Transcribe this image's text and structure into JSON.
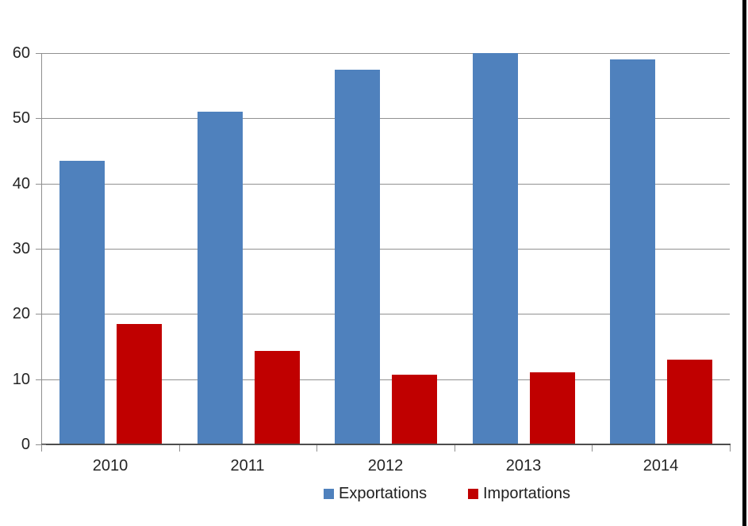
{
  "chart_data": {
    "type": "bar",
    "title": "",
    "xlabel": "",
    "ylabel": "",
    "categories": [
      "2010",
      "2011",
      "2012",
      "2013",
      "2014"
    ],
    "series": [
      {
        "name": "Exportations",
        "color": "#4F81BD",
        "values": [
          43.5,
          51,
          57.5,
          60,
          59
        ]
      },
      {
        "name": "Importations",
        "color": "#C00000",
        "values": [
          18.5,
          14.3,
          10.7,
          11,
          13
        ]
      }
    ],
    "ylim": [
      0,
      60
    ],
    "yticks": [
      0,
      10,
      20,
      30,
      40,
      50,
      60
    ],
    "ytick_labels": [
      "0",
      "10",
      "20",
      "30",
      "40",
      "50",
      "60"
    ],
    "grid": true,
    "gridline_color": "#919191",
    "axis_line_color": "#4d4d4d",
    "text_color": "#252525",
    "background_color": "#ffffff",
    "legend_position": "bottom"
  }
}
